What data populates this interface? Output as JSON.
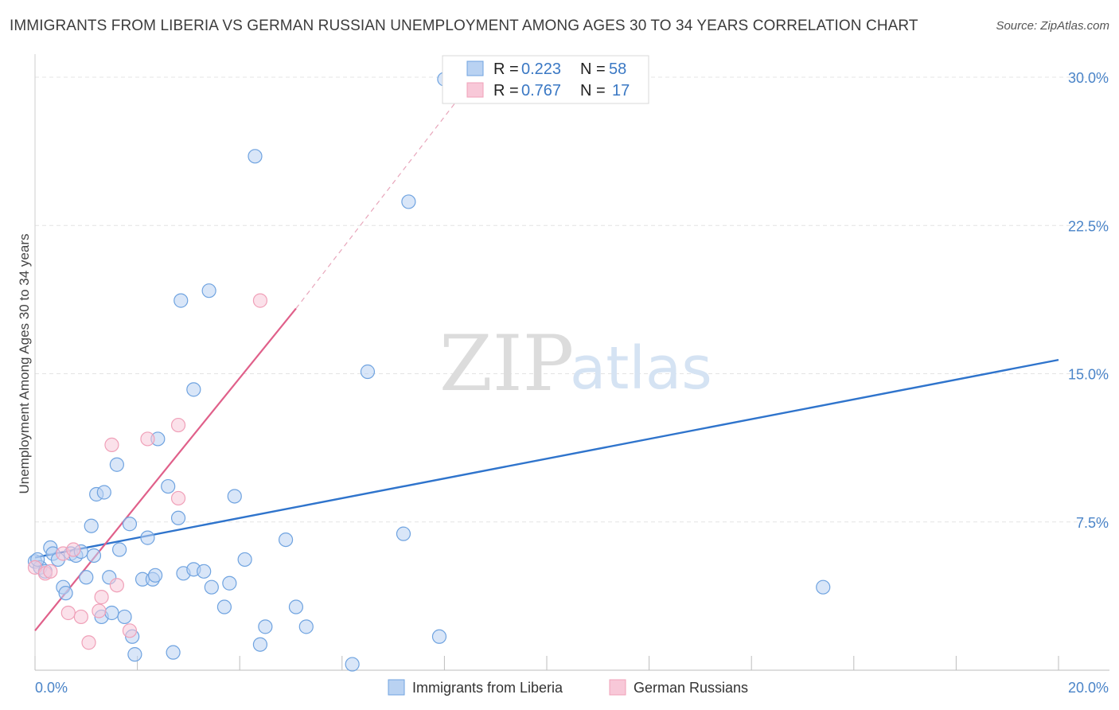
{
  "header": {
    "title": "IMMIGRANTS FROM LIBERIA VS GERMAN RUSSIAN UNEMPLOYMENT AMONG AGES 30 TO 34 YEARS CORRELATION CHART",
    "source": "Source: ZipAtlas.com"
  },
  "watermark": {
    "zip": "ZIP",
    "atlas": "atlas"
  },
  "chart_data": {
    "type": "scatter",
    "title": "IMMIGRANTS FROM LIBERIA VS GERMAN RUSSIAN UNEMPLOYMENT AMONG AGES 30 TO 34 YEARS CORRELATION CHART",
    "xlabel": "",
    "ylabel": "Unemployment Among Ages 30 to 34 years",
    "xlim": [
      0,
      20
    ],
    "ylim": [
      0,
      30
    ],
    "x_tick_labels": [
      {
        "value": 0,
        "label": "0.0%"
      },
      {
        "value": 20,
        "label": "20.0%"
      }
    ],
    "y_tick_labels": [
      {
        "value": 7.5,
        "label": "7.5%"
      },
      {
        "value": 15,
        "label": "15.0%"
      },
      {
        "value": 22.5,
        "label": "22.5%"
      },
      {
        "value": 30,
        "label": "30.0%"
      }
    ],
    "grid": true,
    "legend_position": "top-center",
    "series": [
      {
        "name": "Immigrants from Liberia",
        "color": "#6fa3e0",
        "fill": "#b9d2f2",
        "line_color": "#2f74cc",
        "R": "0.223",
        "N": "58",
        "r_label": "R =",
        "n_label": "N =",
        "trend": {
          "x0": 0,
          "y0": 5.7,
          "x1": 20,
          "y1": 15.7
        },
        "points": [
          [
            0.0,
            5.5
          ],
          [
            0.1,
            5.2
          ],
          [
            0.2,
            5.0
          ],
          [
            0.3,
            6.2
          ],
          [
            0.35,
            5.9
          ],
          [
            0.45,
            5.6
          ],
          [
            0.55,
            4.2
          ],
          [
            0.6,
            3.9
          ],
          [
            0.7,
            5.9
          ],
          [
            0.8,
            5.8
          ],
          [
            0.9,
            6.0
          ],
          [
            1.0,
            4.7
          ],
          [
            1.1,
            7.3
          ],
          [
            1.2,
            8.9
          ],
          [
            1.3,
            2.7
          ],
          [
            1.35,
            9.0
          ],
          [
            1.45,
            4.7
          ],
          [
            1.5,
            2.9
          ],
          [
            1.6,
            10.4
          ],
          [
            1.65,
            6.1
          ],
          [
            1.75,
            2.7
          ],
          [
            1.85,
            7.4
          ],
          [
            1.9,
            1.7
          ],
          [
            1.95,
            0.8
          ],
          [
            2.1,
            4.6
          ],
          [
            2.2,
            6.7
          ],
          [
            2.3,
            4.6
          ],
          [
            2.35,
            4.8
          ],
          [
            2.4,
            11.7
          ],
          [
            2.6,
            9.3
          ],
          [
            2.7,
            0.9
          ],
          [
            2.8,
            7.7
          ],
          [
            2.85,
            18.7
          ],
          [
            2.9,
            4.9
          ],
          [
            3.1,
            5.1
          ],
          [
            3.1,
            14.2
          ],
          [
            3.3,
            5.0
          ],
          [
            3.4,
            19.2
          ],
          [
            3.45,
            4.2
          ],
          [
            3.7,
            3.2
          ],
          [
            3.8,
            4.4
          ],
          [
            3.9,
            8.8
          ],
          [
            4.1,
            5.6
          ],
          [
            4.3,
            26.0
          ],
          [
            4.4,
            1.3
          ],
          [
            4.5,
            2.2
          ],
          [
            4.9,
            6.6
          ],
          [
            5.1,
            3.2
          ],
          [
            5.3,
            2.2
          ],
          [
            6.2,
            0.3
          ],
          [
            6.5,
            15.1
          ],
          [
            7.2,
            6.9
          ],
          [
            7.3,
            23.7
          ],
          [
            7.9,
            1.7
          ],
          [
            8.0,
            29.9
          ],
          [
            15.4,
            4.2
          ],
          [
            0.05,
            5.6
          ],
          [
            1.15,
            5.8
          ]
        ]
      },
      {
        "name": "German Russians",
        "color": "#f0a0b8",
        "fill": "#f8c8d8",
        "line_color": "#e0608a",
        "R": "0.767",
        "N": "17",
        "r_label": "R =",
        "n_label": "N =",
        "trend": {
          "x0": 0,
          "y0": 2.0,
          "x1": 5.1,
          "y1": 18.3
        },
        "trend_dashed": {
          "x0": 5.1,
          "y0": 18.3,
          "x1": 8.3,
          "y1": 29.0
        },
        "points": [
          [
            0.0,
            5.2
          ],
          [
            0.2,
            4.9
          ],
          [
            0.3,
            5.0
          ],
          [
            0.55,
            5.9
          ],
          [
            0.65,
            2.9
          ],
          [
            0.75,
            6.1
          ],
          [
            0.9,
            2.7
          ],
          [
            1.05,
            1.4
          ],
          [
            1.25,
            3.0
          ],
          [
            1.3,
            3.7
          ],
          [
            1.5,
            11.4
          ],
          [
            1.6,
            4.3
          ],
          [
            1.85,
            2.0
          ],
          [
            2.2,
            11.7
          ],
          [
            2.8,
            8.7
          ],
          [
            2.8,
            12.4
          ],
          [
            4.4,
            18.7
          ]
        ]
      }
    ]
  }
}
